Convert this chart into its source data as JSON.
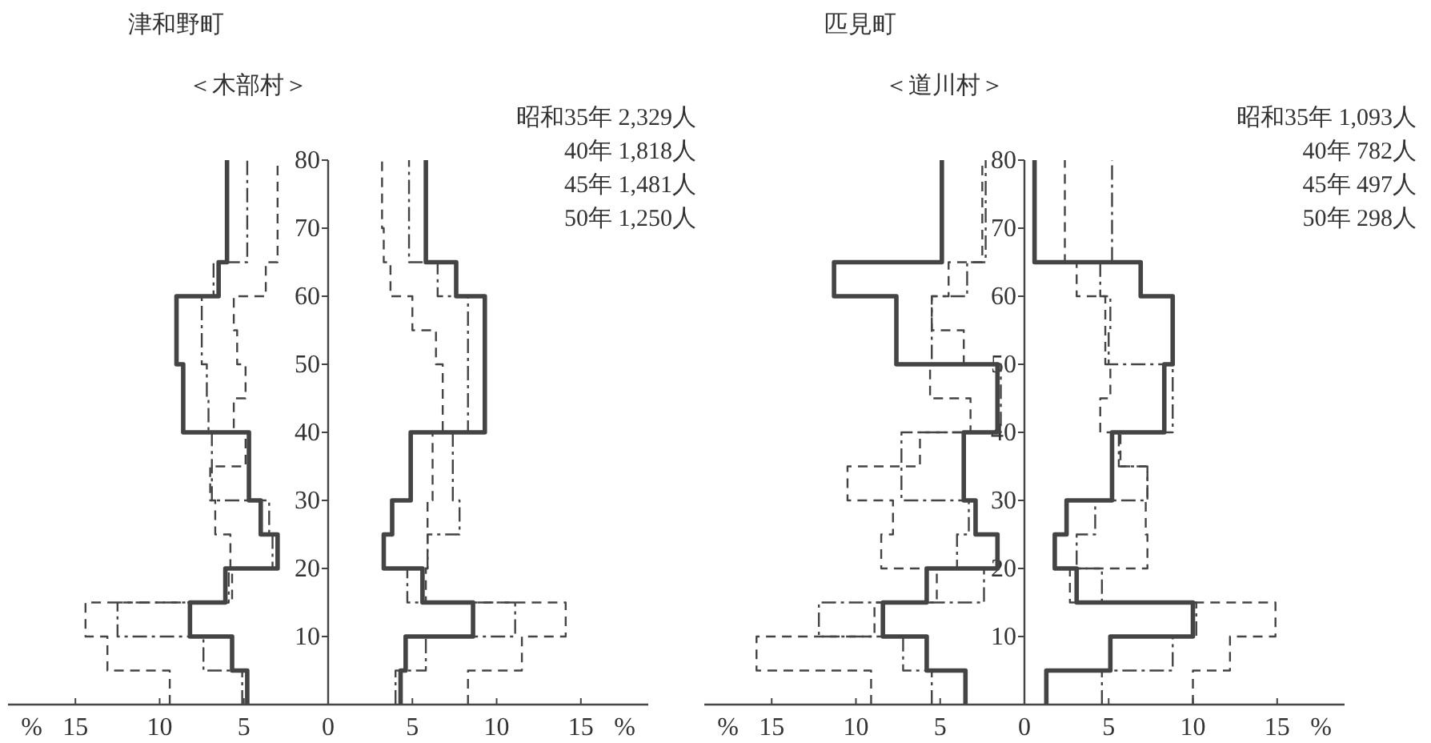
{
  "chart_data": [
    {
      "type": "line",
      "title": "津和野町",
      "subtitle": "＜木部村＞",
      "annotations": [
        "昭和35年 2,329人",
        "40年 1,818人",
        "45年 1,481人",
        "50年 1,250人"
      ],
      "xlim": [
        -19,
        19
      ],
      "xticks": [
        {
          "value": -17.6,
          "label": "%"
        },
        {
          "value": -15,
          "label": "15"
        },
        {
          "value": -10,
          "label": "10"
        },
        {
          "value": -5,
          "label": "5"
        },
        0,
        5,
        10,
        15,
        {
          "value": 17.6,
          "label": "%"
        }
      ],
      "ylim": [
        0,
        80
      ],
      "yticks": [
        10,
        20,
        30,
        40,
        50,
        60,
        70,
        80
      ],
      "series": [
        {
          "color": "#444444",
          "line_style": "solid",
          "x": [
            -4.8,
            -4.8,
            -5.7,
            -5.7,
            -8.2,
            -8.2,
            -6.1,
            -6.1,
            -3.0,
            -3.0,
            -4.0,
            -4.0,
            -4.7,
            -4.7,
            -4.7,
            -4.7,
            -8.6,
            -8.6,
            -8.6,
            -8.6,
            -9.0,
            -9.0,
            -9.0,
            -9.0,
            -6.5,
            -6.5,
            -6.0,
            -6.0,
            -6.0,
            -6.0,
            -6.0,
            -6.0
          ],
          "values": [
            0,
            5,
            5,
            10,
            10,
            15,
            15,
            20,
            20,
            25,
            25,
            30,
            30,
            35,
            35,
            40,
            40,
            45,
            45,
            50,
            50,
            55,
            55,
            60,
            60,
            65,
            65,
            70,
            70,
            75,
            75,
            80
          ]
        },
        {
          "color": "#444444",
          "line_style": "solid",
          "x": [
            4.3,
            4.3,
            4.6,
            4.6,
            8.6,
            8.6,
            5.6,
            5.6,
            3.3,
            3.3,
            3.8,
            3.8,
            4.9,
            4.9,
            4.9,
            4.9,
            9.3,
            9.3,
            9.3,
            9.3,
            9.3,
            9.3,
            9.3,
            9.3,
            7.6,
            7.6,
            5.8,
            5.8,
            5.8,
            5.8,
            5.8,
            5.8
          ],
          "values": [
            0,
            5,
            5,
            10,
            10,
            15,
            15,
            20,
            20,
            25,
            25,
            30,
            30,
            35,
            35,
            40,
            40,
            45,
            45,
            50,
            50,
            55,
            55,
            60,
            60,
            65,
            65,
            70,
            70,
            75,
            75,
            80
          ]
        },
        {
          "color": "#444444",
          "line_style": "dashdot",
          "x": [
            -5.1,
            -5.1,
            -7.4,
            -7.4,
            -12.5,
            -12.5,
            -5.9,
            -5.9,
            -3.3,
            -3.3,
            -3.5,
            -3.5,
            -6.9,
            -6.9,
            -6.9,
            -6.9,
            -7.1,
            -7.1,
            -7.2,
            -7.2,
            -7.5,
            -7.5,
            -7.5,
            -7.5,
            -6.8,
            -6.8,
            -4.8,
            -4.8,
            -4.8,
            -4.8,
            -4.8,
            -4.8
          ],
          "values": [
            0,
            5,
            5,
            10,
            10,
            15,
            15,
            20,
            20,
            25,
            25,
            30,
            30,
            35,
            35,
            40,
            40,
            45,
            45,
            50,
            50,
            55,
            55,
            60,
            60,
            65,
            65,
            70,
            70,
            75,
            75,
            80
          ]
        },
        {
          "color": "#444444",
          "line_style": "dashdot",
          "x": [
            4.0,
            4.0,
            5.8,
            5.8,
            11.1,
            11.1,
            4.7,
            4.7,
            5.9,
            5.9,
            7.8,
            7.8,
            7.4,
            7.4,
            7.4,
            7.4,
            8.3,
            8.3,
            8.3,
            8.3,
            8.3,
            8.3,
            8.3,
            8.3,
            6.5,
            6.5,
            4.8,
            4.8,
            4.8,
            4.8,
            4.8,
            4.8
          ],
          "values": [
            0,
            5,
            5,
            10,
            10,
            15,
            15,
            20,
            20,
            25,
            25,
            30,
            30,
            35,
            35,
            40,
            40,
            45,
            45,
            50,
            50,
            55,
            55,
            60,
            60,
            65,
            65,
            70,
            70,
            75,
            75,
            80
          ]
        },
        {
          "color": "#444444",
          "line_style": "dashed",
          "x": [
            -9.4,
            -9.4,
            -13.1,
            -13.1,
            -14.4,
            -14.4,
            -5.7,
            -5.7,
            -5.8,
            -5.8,
            -6.7,
            -6.7,
            -7.0,
            -7.0,
            -4.9,
            -4.9,
            -5.6,
            -5.6,
            -4.9,
            -4.9,
            -5.4,
            -5.4,
            -5.6,
            -5.6,
            -3.7,
            -3.7,
            -3.0,
            -3.0,
            -3.0,
            -3.0,
            -3.0,
            -3.0
          ],
          "values": [
            0,
            5,
            5,
            10,
            10,
            15,
            15,
            20,
            20,
            25,
            25,
            30,
            30,
            35,
            35,
            40,
            40,
            45,
            45,
            50,
            50,
            55,
            55,
            60,
            60,
            65,
            65,
            70,
            70,
            75,
            75,
            80
          ]
        },
        {
          "color": "#444444",
          "line_style": "dashed",
          "x": [
            8.3,
            8.3,
            11.5,
            11.5,
            14.1,
            14.1,
            5.8,
            5.8,
            5.9,
            5.9,
            5.9,
            5.9,
            6.2,
            6.2,
            6.2,
            6.2,
            6.8,
            6.8,
            6.8,
            6.8,
            6.4,
            6.4,
            5.0,
            5.0,
            3.7,
            3.7,
            3.3,
            3.3,
            3.2,
            3.2,
            3.2,
            3.2
          ],
          "values": [
            0,
            5,
            5,
            10,
            10,
            15,
            15,
            20,
            20,
            25,
            25,
            30,
            30,
            35,
            35,
            40,
            40,
            45,
            45,
            50,
            50,
            55,
            55,
            60,
            60,
            65,
            65,
            70,
            70,
            75,
            75,
            80
          ]
        }
      ]
    },
    {
      "type": "line",
      "title": "匹見町",
      "subtitle": "＜道川村＞",
      "annotations": [
        "昭和35年 1,093人",
        "40年 782人",
        "45年 497人",
        "50年 298人"
      ],
      "xlim": [
        -19,
        19
      ],
      "xticks": [
        {
          "value": -17.6,
          "label": "%"
        },
        {
          "value": -15,
          "label": "15"
        },
        {
          "value": -10,
          "label": "10"
        },
        {
          "value": -5,
          "label": "5"
        },
        0,
        5,
        10,
        15,
        {
          "value": 17.6,
          "label": "%"
        }
      ],
      "ylim": [
        0,
        80
      ],
      "yticks": [
        10,
        20,
        30,
        40,
        50,
        60,
        70,
        80
      ],
      "series": [
        {
          "color": "#444444",
          "line_style": "solid",
          "x": [
            -3.5,
            -3.5,
            -5.8,
            -5.8,
            -8.4,
            -8.4,
            -5.8,
            -5.8,
            -1.6,
            -1.6,
            -2.9,
            -2.9,
            -3.6,
            -3.6,
            -3.6,
            -3.6,
            -1.6,
            -1.6,
            -1.6,
            -1.6,
            -7.6,
            -7.6,
            -7.6,
            -7.6,
            -11.3,
            -11.3,
            -4.9,
            -4.9,
            -4.9,
            -4.9,
            -4.9,
            -4.9
          ],
          "values": [
            0,
            5,
            5,
            10,
            10,
            15,
            15,
            20,
            20,
            25,
            25,
            30,
            30,
            35,
            35,
            40,
            40,
            45,
            45,
            50,
            50,
            55,
            55,
            60,
            60,
            65,
            65,
            70,
            70,
            75,
            75,
            80
          ]
        },
        {
          "color": "#444444",
          "line_style": "solid",
          "x": [
            1.3,
            1.3,
            5.1,
            5.1,
            10.0,
            10.0,
            3.1,
            3.1,
            1.8,
            1.8,
            2.5,
            2.5,
            5.2,
            5.2,
            5.2,
            5.2,
            8.3,
            8.3,
            8.3,
            8.3,
            8.8,
            8.8,
            8.8,
            8.8,
            6.9,
            6.9,
            0.6,
            0.6,
            0.6,
            0.6,
            0.6,
            0.6
          ],
          "values": [
            0,
            5,
            5,
            10,
            10,
            15,
            15,
            20,
            20,
            25,
            25,
            30,
            30,
            35,
            35,
            40,
            40,
            45,
            45,
            50,
            50,
            55,
            55,
            60,
            60,
            65,
            65,
            70,
            70,
            75,
            75,
            80
          ]
        },
        {
          "color": "#444444",
          "line_style": "dashdot",
          "x": [
            -5.5,
            -5.5,
            -7.2,
            -7.2,
            -12.2,
            -12.2,
            -2.4,
            -2.4,
            -4.0,
            -4.0,
            -3.3,
            -3.3,
            -7.3,
            -7.3,
            -7.3,
            -7.3,
            -1.4,
            -1.4,
            -1.4,
            -1.4,
            -5.5,
            -5.5,
            -5.5,
            -5.5,
            -3.4,
            -3.4,
            -2.3,
            -2.3,
            -2.3,
            -2.3,
            -2.3,
            -2.3
          ],
          "values": [
            0,
            5,
            5,
            10,
            10,
            15,
            15,
            20,
            20,
            25,
            25,
            30,
            30,
            35,
            35,
            40,
            40,
            45,
            45,
            50,
            50,
            55,
            55,
            60,
            60,
            65,
            65,
            70,
            70,
            75,
            75,
            80
          ]
        },
        {
          "color": "#444444",
          "line_style": "dashdot",
          "x": [
            4.6,
            4.6,
            8.8,
            8.8,
            10.2,
            10.2,
            4.6,
            4.6,
            3.1,
            3.1,
            4.2,
            4.2,
            7.3,
            7.3,
            5.6,
            5.6,
            8.8,
            8.8,
            8.8,
            8.8,
            5.0,
            5.0,
            5.1,
            5.1,
            4.5,
            4.5,
            5.2,
            5.2,
            5.2,
            5.2,
            5.2,
            5.2
          ],
          "values": [
            0,
            5,
            5,
            10,
            10,
            15,
            15,
            20,
            20,
            25,
            25,
            30,
            30,
            35,
            35,
            40,
            40,
            45,
            45,
            50,
            50,
            55,
            55,
            60,
            60,
            65,
            65,
            70,
            70,
            75,
            75,
            80
          ]
        },
        {
          "color": "#444444",
          "line_style": "dashed",
          "x": [
            -9.1,
            -9.1,
            -15.9,
            -15.9,
            -8.9,
            -8.9,
            -5.2,
            -5.2,
            -8.5,
            -8.5,
            -7.8,
            -7.8,
            -10.5,
            -10.5,
            -6.2,
            -6.2,
            -3.2,
            -3.2,
            -5.6,
            -5.6,
            -3.6,
            -3.6,
            -5.5,
            -5.5,
            -4.5,
            -4.5,
            -2.5,
            -2.5,
            -2.5,
            -2.5,
            -2.5,
            -2.5
          ],
          "values": [
            0,
            5,
            5,
            10,
            10,
            15,
            15,
            20,
            20,
            25,
            25,
            30,
            30,
            35,
            35,
            40,
            40,
            45,
            45,
            50,
            50,
            55,
            55,
            60,
            60,
            65,
            65,
            70,
            70,
            75,
            75,
            80
          ]
        },
        {
          "color": "#444444",
          "line_style": "dashed",
          "x": [
            10.0,
            10.0,
            12.2,
            12.2,
            14.9,
            14.9,
            2.7,
            2.7,
            7.3,
            7.3,
            7.2,
            7.2,
            7.3,
            7.3,
            5.7,
            5.7,
            4.5,
            4.5,
            5.1,
            5.1,
            4.8,
            4.8,
            4.8,
            4.8,
            3.1,
            3.1,
            2.4,
            2.4,
            2.4,
            2.4,
            2.4,
            2.4
          ],
          "values": [
            0,
            5,
            5,
            10,
            10,
            15,
            15,
            20,
            20,
            25,
            25,
            30,
            30,
            35,
            35,
            40,
            40,
            45,
            45,
            50,
            50,
            55,
            55,
            60,
            60,
            65,
            65,
            70,
            70,
            75,
            75,
            80
          ]
        }
      ]
    }
  ]
}
